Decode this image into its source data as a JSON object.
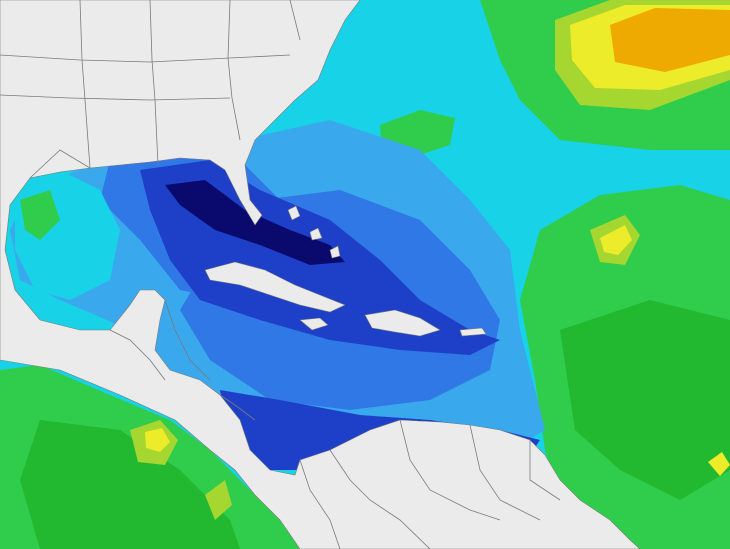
{
  "map": {
    "type": "ocean-field-contour",
    "colors": {
      "land": "#ebebeb",
      "border": "#7a7a7a",
      "navy": "#0a0a6e",
      "deep_blue": "#1e40c8",
      "blue": "#3078e6",
      "sky": "#3aa8ec",
      "cyan": "#18d2e8",
      "green": "#30cc4c",
      "light_green": "#22b830",
      "yellow_green": "#a6d630",
      "yellow": "#ecec2a",
      "orange": "#eeaa00",
      "dark_orange": "#e08a00"
    }
  }
}
